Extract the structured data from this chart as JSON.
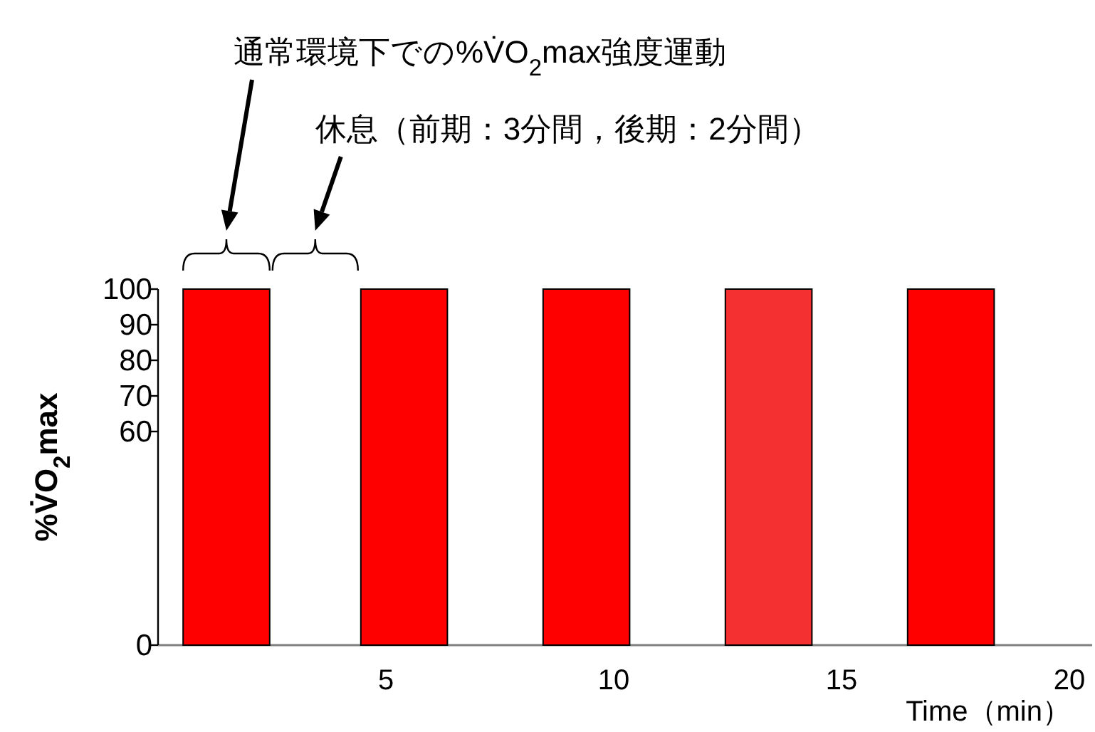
{
  "chart_data": {
    "type": "bar",
    "x": [
      1.5,
      5.4,
      9.4,
      13.4,
      17.4
    ],
    "values": [
      100,
      100,
      100,
      100,
      100
    ],
    "colors": [
      "#ff0000",
      "#ff0000",
      "#ff0000",
      "#f53030",
      "#ff0000"
    ],
    "xlim": [
      0,
      20.5
    ],
    "xticks": [
      5,
      10,
      15,
      20
    ],
    "ylim": [
      0,
      100
    ],
    "yticks": [
      0,
      60,
      70,
      80,
      90,
      100
    ],
    "xlabel": "Time（min）",
    "ylabel": "%V̇O$_{2}$max",
    "grid": false,
    "annotations": [
      "通常環境下での%V̇O$_{2}$max強度運動",
      "休息（前期：3分間，後期：2分間）"
    ]
  }
}
